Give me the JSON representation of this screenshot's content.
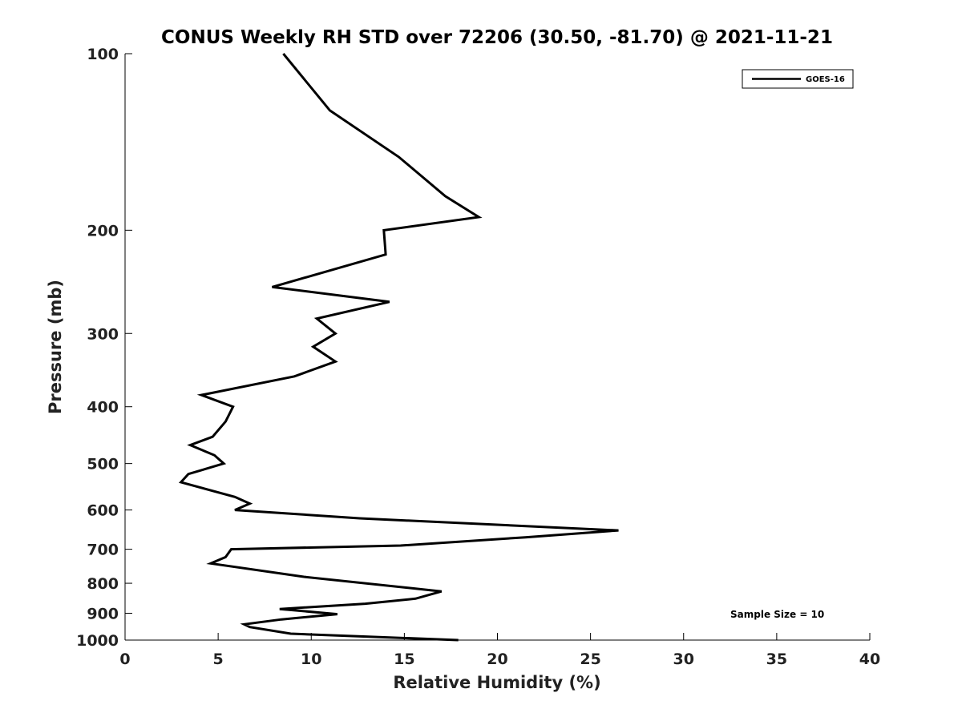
{
  "chart_data": {
    "type": "line",
    "title": "CONUS Weekly RH STD over 72206 (30.50, -81.70) @ 2021-11-21",
    "xlabel": "Relative Humidity (%)",
    "ylabel": "Pressure (mb)",
    "xlim": [
      0,
      40
    ],
    "ylim": [
      100,
      1000
    ],
    "y_scale": "log",
    "y_reversed": true,
    "x_ticks": [
      "0",
      "5",
      "10",
      "15",
      "20",
      "25",
      "30",
      "35",
      "40"
    ],
    "y_ticks": [
      "100",
      "200",
      "300",
      "400",
      "500",
      "600",
      "700",
      "800",
      "900",
      "1000"
    ],
    "grid": false,
    "legend_position": "top-right",
    "series": [
      {
        "name": "GOES-16",
        "color": "#000000",
        "points": [
          [
            8.5,
            100
          ],
          [
            11.0,
            125
          ],
          [
            14.7,
            150
          ],
          [
            17.2,
            175
          ],
          [
            19.0,
            190
          ],
          [
            13.9,
            200
          ],
          [
            14.0,
            220
          ],
          [
            7.9,
            250
          ],
          [
            14.2,
            265
          ],
          [
            10.3,
            283
          ],
          [
            11.3,
            300
          ],
          [
            10.1,
            316
          ],
          [
            11.3,
            335
          ],
          [
            9.1,
            355
          ],
          [
            4.1,
            382
          ],
          [
            5.8,
            400
          ],
          [
            5.4,
            424
          ],
          [
            4.7,
            450
          ],
          [
            3.5,
            465
          ],
          [
            4.8,
            484
          ],
          [
            5.3,
            500
          ],
          [
            3.4,
            521
          ],
          [
            3.0,
            538
          ],
          [
            5.9,
            570
          ],
          [
            6.7,
            585
          ],
          [
            5.9,
            600
          ],
          [
            12.6,
            620
          ],
          [
            26.5,
            650
          ],
          [
            21.5,
            668
          ],
          [
            14.8,
            690
          ],
          [
            5.7,
            700
          ],
          [
            5.4,
            722
          ],
          [
            4.6,
            740
          ],
          [
            9.6,
            780
          ],
          [
            17.0,
            826
          ],
          [
            15.6,
            850
          ],
          [
            12.9,
            867
          ],
          [
            8.3,
            885
          ],
          [
            11.4,
            903
          ],
          [
            8.4,
            922
          ],
          [
            6.4,
            940
          ],
          [
            6.7,
            950
          ],
          [
            8.9,
            975
          ],
          [
            17.9,
            1000
          ]
        ]
      }
    ],
    "annotations": [
      "Sample Size = 10"
    ]
  }
}
